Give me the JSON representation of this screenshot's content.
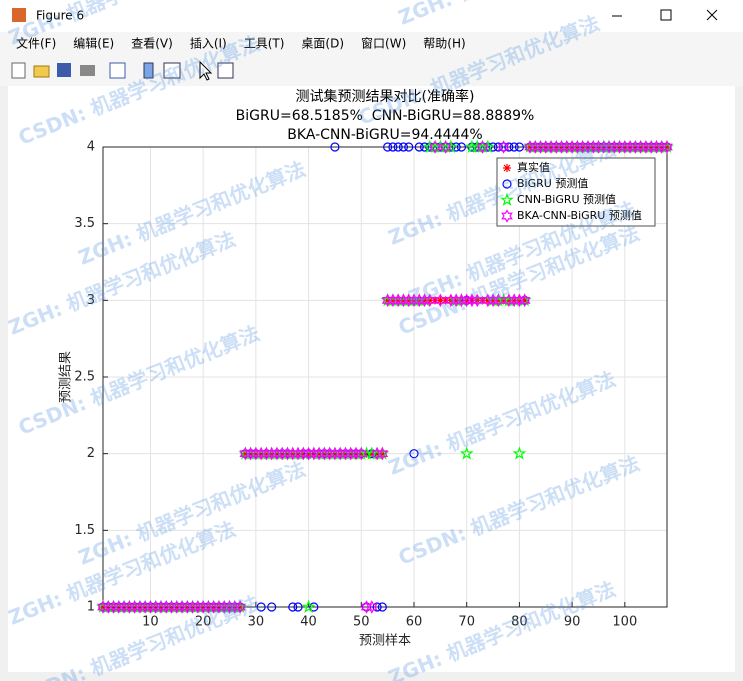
{
  "window": {
    "title": "Figure 6",
    "menu": [
      "文件(F)",
      "编辑(E)",
      "查看(V)",
      "插入(I)",
      "工具(T)",
      "桌面(D)",
      "窗口(W)",
      "帮助(H)"
    ]
  },
  "watermark": [
    "ZGH: 机器学习和优化算法",
    "CSDN: 机器学习和优化算法"
  ],
  "chart_data": {
    "type": "scatter",
    "title": [
      "测试集预测结果对比(准确率)",
      "BiGRU=68.5185%  CNN-BiGRU=88.8889%",
      "BKA-CNN-BiGRU=94.4444%"
    ],
    "xlabel": "预测样本",
    "ylabel": "预测结果",
    "x": [
      1,
      2,
      3,
      4,
      5,
      6,
      7,
      8,
      9,
      10,
      11,
      12,
      13,
      14,
      15,
      16,
      17,
      18,
      19,
      20,
      21,
      22,
      23,
      24,
      25,
      26,
      27,
      28,
      29,
      30,
      31,
      32,
      33,
      34,
      35,
      36,
      37,
      38,
      39,
      40,
      41,
      42,
      43,
      44,
      45,
      46,
      47,
      48,
      49,
      50,
      51,
      52,
      53,
      54,
      55,
      56,
      57,
      58,
      59,
      60,
      61,
      62,
      63,
      64,
      65,
      66,
      67,
      68,
      69,
      70,
      71,
      72,
      73,
      74,
      75,
      76,
      77,
      78,
      79,
      80,
      81,
      82,
      83,
      84,
      85,
      86,
      87,
      88,
      89,
      90,
      91,
      92,
      93,
      94,
      95,
      96,
      97,
      98,
      99,
      100,
      101,
      102,
      103,
      104,
      105,
      106,
      107,
      108
    ],
    "xlim": [
      1,
      108
    ],
    "ylim": [
      1,
      4
    ],
    "xticks": [
      10,
      20,
      30,
      40,
      50,
      60,
      70,
      80,
      90,
      100
    ],
    "yticks": [
      1,
      1.5,
      2,
      2.5,
      3,
      3.5,
      4
    ],
    "grid": true,
    "legend_location": "northeast",
    "series": [
      {
        "name": "真实值",
        "color": "#ff0000",
        "marker": "asterisk",
        "values": [
          1,
          1,
          1,
          1,
          1,
          1,
          1,
          1,
          1,
          1,
          1,
          1,
          1,
          1,
          1,
          1,
          1,
          1,
          1,
          1,
          1,
          1,
          1,
          1,
          1,
          1,
          1,
          2,
          2,
          2,
          2,
          2,
          2,
          2,
          2,
          2,
          2,
          2,
          2,
          2,
          2,
          2,
          2,
          2,
          2,
          2,
          2,
          2,
          2,
          2,
          2,
          2,
          2,
          2,
          3,
          3,
          3,
          3,
          3,
          3,
          3,
          3,
          3,
          3,
          3,
          3,
          3,
          3,
          3,
          3,
          3,
          3,
          3,
          3,
          3,
          3,
          3,
          3,
          3,
          3,
          3,
          4,
          4,
          4,
          4,
          4,
          4,
          4,
          4,
          4,
          4,
          4,
          4,
          4,
          4,
          4,
          4,
          4,
          4,
          4,
          4,
          4,
          4,
          4,
          4,
          4,
          4,
          4
        ]
      },
      {
        "name": "BiGRU 预测值",
        "color": "#0000ff",
        "marker": "circle",
        "values": [
          1,
          1,
          1,
          1,
          1,
          1,
          1,
          1,
          1,
          1,
          1,
          1,
          1,
          1,
          1,
          1,
          1,
          1,
          1,
          1,
          1,
          1,
          1,
          1,
          1,
          1,
          1,
          2,
          2,
          2,
          1,
          2,
          1,
          2,
          2,
          2,
          1,
          1,
          2,
          2,
          1,
          2,
          2,
          2,
          4,
          2,
          2,
          2,
          2,
          2,
          1,
          2,
          1,
          1,
          4,
          4,
          4,
          4,
          4,
          2,
          4,
          4,
          4,
          4,
          4,
          4,
          4,
          4,
          4,
          3,
          4,
          4,
          4,
          4,
          4,
          4,
          4,
          4,
          4,
          4,
          3,
          4,
          4,
          4,
          4,
          4,
          4,
          4,
          4,
          4,
          4,
          4,
          4,
          4,
          4,
          4,
          4,
          4,
          4,
          4,
          4,
          4,
          4,
          4,
          4,
          4,
          4,
          4
        ]
      },
      {
        "name": "CNN-BiGRU 预测值",
        "color": "#00ff00",
        "marker": "pentagram",
        "values": [
          1,
          1,
          1,
          1,
          1,
          1,
          1,
          1,
          1,
          1,
          1,
          1,
          1,
          1,
          1,
          1,
          1,
          1,
          1,
          1,
          1,
          1,
          1,
          1,
          1,
          1,
          1,
          2,
          2,
          2,
          2,
          2,
          2,
          2,
          2,
          2,
          2,
          2,
          2,
          1,
          2,
          2,
          2,
          2,
          2,
          2,
          2,
          2,
          2,
          2,
          2,
          2,
          2,
          2,
          3,
          3,
          3,
          3,
          3,
          3,
          3,
          3,
          4,
          4,
          4,
          4,
          4,
          3,
          3,
          2,
          4,
          4,
          4,
          4,
          3,
          3,
          3,
          3,
          3,
          2,
          3,
          4,
          4,
          4,
          4,
          4,
          4,
          4,
          4,
          4,
          4,
          4,
          4,
          4,
          4,
          4,
          4,
          4,
          4,
          4,
          4,
          4,
          4,
          4,
          4,
          4,
          4,
          4
        ]
      },
      {
        "name": "BKA-CNN-BiGRU 预测值",
        "color": "#ff00ff",
        "marker": "hexagram",
        "values": [
          1,
          1,
          1,
          1,
          1,
          1,
          1,
          1,
          1,
          1,
          1,
          1,
          1,
          1,
          1,
          1,
          1,
          1,
          1,
          1,
          1,
          1,
          1,
          1,
          1,
          1,
          1,
          2,
          2,
          2,
          2,
          2,
          2,
          2,
          2,
          2,
          2,
          2,
          2,
          2,
          2,
          2,
          2,
          2,
          2,
          2,
          2,
          2,
          2,
          2,
          1,
          1,
          2,
          2,
          3,
          3,
          3,
          3,
          3,
          3,
          3,
          3,
          3,
          4,
          3,
          4,
          3,
          3,
          3,
          3,
          3,
          3,
          4,
          3,
          3,
          3,
          4,
          3,
          3,
          3,
          3,
          4,
          4,
          4,
          4,
          4,
          4,
          4,
          4,
          4,
          4,
          4,
          4,
          4,
          4,
          4,
          4,
          4,
          4,
          4,
          4,
          4,
          4,
          4,
          4,
          4,
          4,
          4
        ]
      }
    ]
  }
}
